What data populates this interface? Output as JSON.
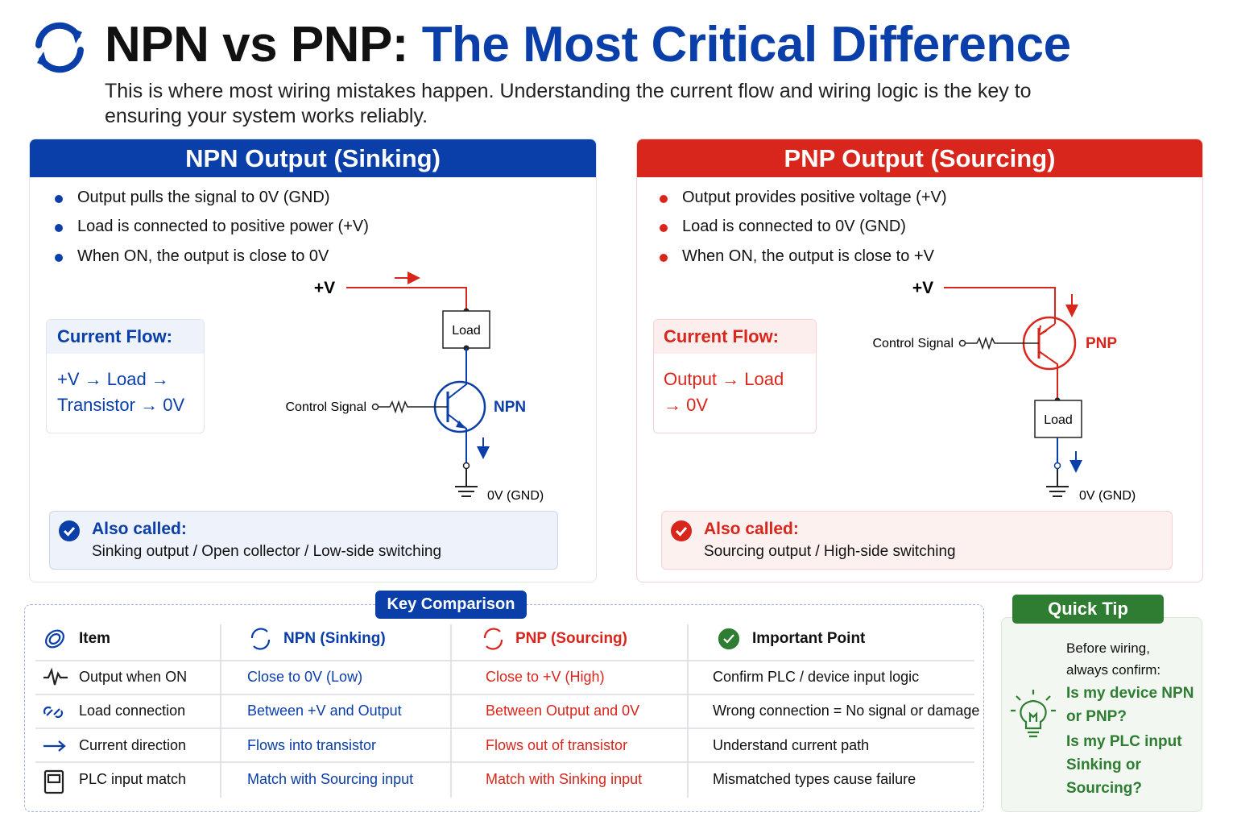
{
  "header": {
    "title_part1": "NPN vs PNP:",
    "title_part2": "The Most Critical Difference",
    "subtitle": "This is where most wiring mistakes happen. Understanding the current flow and wiring logic is the key to ensuring your system works reliably."
  },
  "npn": {
    "title": "NPN Output (Sinking)",
    "bullets": [
      "Output pulls the signal to 0V (GND)",
      "Load is connected to positive power (+V)",
      "When ON, the output is close to 0V"
    ],
    "current_flow": {
      "label": "Current Flow:",
      "text": "+V → Load → Transistor → 0V"
    },
    "circuit": {
      "supply": "+V",
      "load": "Load",
      "control": "Control Signal",
      "transistor": "NPN",
      "ground": "0V (GND)"
    },
    "also_called": {
      "label": "Also called:",
      "text": "Sinking output / Open collector / Low-side switching"
    }
  },
  "pnp": {
    "title": "PNP Output (Sourcing)",
    "bullets": [
      "Output provides positive voltage (+V)",
      "Load is connected to 0V (GND)",
      "When ON, the output is close to +V"
    ],
    "current_flow": {
      "label": "Current Flow:",
      "text": "Output → Load → 0V"
    },
    "circuit": {
      "supply": "+V",
      "load": "Load",
      "control": "Control Signal",
      "transistor": "PNP",
      "ground": "0V (GND)"
    },
    "also_called": {
      "label": "Also called:",
      "text": "Sourcing output / High-side switching"
    }
  },
  "comparison": {
    "title": "Key Comparison",
    "headers": [
      "Item",
      "NPN (Sinking)",
      "PNP (Sourcing)",
      "Important Point"
    ],
    "rows": [
      [
        "Output when ON",
        "Close to 0V (Low)",
        "Close to +V (High)",
        "Confirm PLC / device input logic"
      ],
      [
        "Load connection",
        "Between +V and Output",
        "Between Output and 0V",
        "Wrong connection = No signal or damage"
      ],
      [
        "Current direction",
        "Flows into transistor",
        "Flows out of transistor",
        "Understand current path"
      ],
      [
        "PLC input match",
        "Match with Sourcing input",
        "Match with Sinking input",
        "Mismatched types cause failure"
      ]
    ]
  },
  "tip": {
    "title": "Quick Tip",
    "intro": "Before wiring, always confirm:",
    "questions": [
      "Is my device NPN or PNP?",
      "Is my PLC input Sinking or Sourcing?"
    ]
  }
}
